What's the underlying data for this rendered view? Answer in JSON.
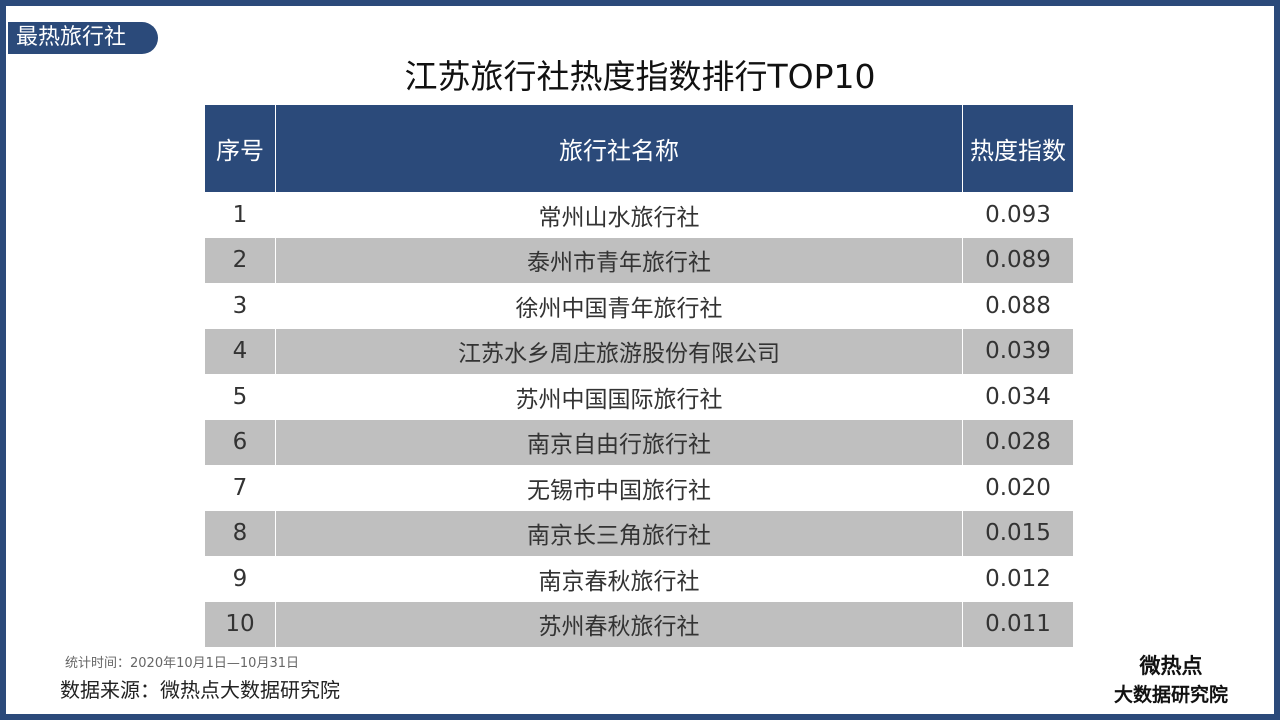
{
  "tag": "最热旅行社",
  "title": "江苏旅行社热度指数排行TOP10",
  "table": {
    "columns": [
      "序号",
      "旅行社名称",
      "热度指数"
    ],
    "rows": [
      [
        "1",
        "常州山水旅行社",
        "0.093"
      ],
      [
        "2",
        "泰州市青年旅行社",
        "0.089"
      ],
      [
        "3",
        "徐州中国青年旅行社",
        "0.088"
      ],
      [
        "4",
        "江苏水乡周庄旅游股份有限公司",
        "0.039"
      ],
      [
        "5",
        "苏州中国国际旅行社",
        "0.034"
      ],
      [
        "6",
        "南京自由行旅行社",
        "0.028"
      ],
      [
        "7",
        "无锡市中国旅行社",
        "0.020"
      ],
      [
        "8",
        "南京长三角旅行社",
        "0.015"
      ],
      [
        "9",
        "南京春秋旅行社",
        "0.012"
      ],
      [
        "10",
        "苏州春秋旅行社",
        "0.011"
      ]
    ]
  },
  "footer": {
    "period": "统计时间：2020年10月1日—10月31日",
    "source": "数据来源：微热点大数据研究院"
  },
  "logo": {
    "name": "微热点",
    "subtitle": "大数据研究院"
  }
}
